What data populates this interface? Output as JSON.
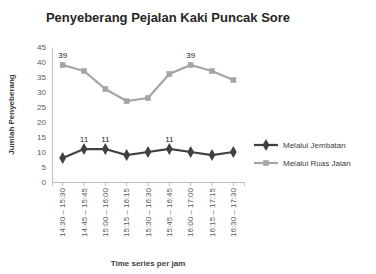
{
  "chart_data": {
    "type": "line",
    "title": "Penyeberang Pejalan Kaki Puncak Sore",
    "x_label": "Time series per jam",
    "y_label": "Jumlah Penyeberang",
    "categories": [
      "14:30 – 15:30",
      "14:45 – 15:45",
      "15:00 – 16:00",
      "15:15 – 16:15",
      "15:30 – 16:30",
      "15:45 – 16:45",
      "16:00 – 17:00",
      "16:15 – 17:15",
      "16:30 – 17:30"
    ],
    "series": [
      {
        "name": "Melalui Jembatan",
        "color": "#404040",
        "marker": "diamond",
        "values": [
          8,
          11,
          11,
          9,
          10,
          11,
          10,
          9,
          10
        ],
        "value_labels": [
          null,
          "11",
          "11",
          null,
          null,
          "11",
          null,
          null,
          null
        ]
      },
      {
        "name": "Melalui Ruas Jalan",
        "color": "#a6a6a6",
        "marker": "square",
        "values": [
          39,
          37,
          31,
          27,
          28,
          36,
          39,
          37,
          34
        ],
        "value_labels": [
          "39",
          null,
          null,
          null,
          null,
          null,
          "39",
          null,
          null
        ]
      }
    ],
    "ylim": [
      0,
      45
    ],
    "yticks": [
      0,
      5,
      10,
      15,
      20,
      25,
      30,
      35,
      40,
      45
    ],
    "grid": false,
    "legend": "right",
    "data_labels": true
  }
}
